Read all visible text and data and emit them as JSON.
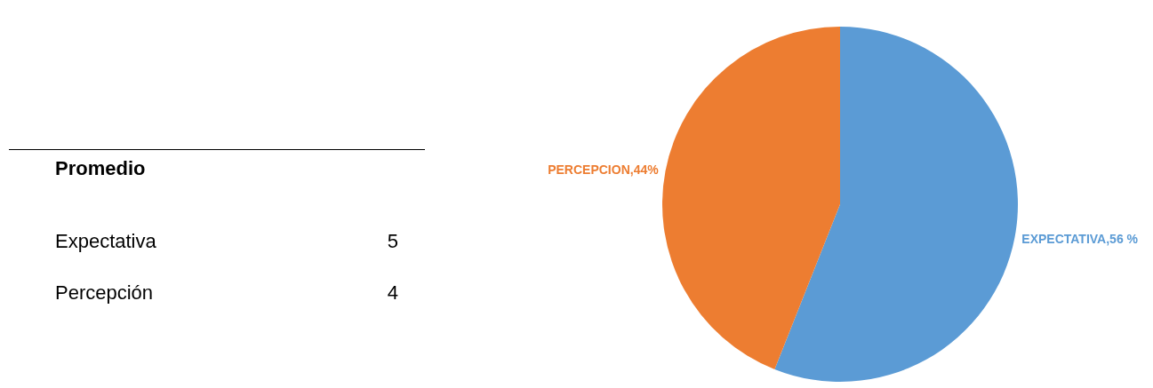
{
  "chart_data": [
    {
      "type": "other",
      "title": "Promedio",
      "categories": [
        "Expectativa",
        "Percepción"
      ],
      "values": [
        5,
        4
      ],
      "data_labels": true
    },
    {
      "type": "pie",
      "categories": [
        "EXPECTATIVA",
        "PERCEPCION"
      ],
      "values": [
        56,
        44
      ],
      "colors": [
        "#5b9bd5",
        "#ed7d31"
      ],
      "value_labels": [
        ",56 %",
        ",44%"
      ],
      "legend": false
    }
  ]
}
